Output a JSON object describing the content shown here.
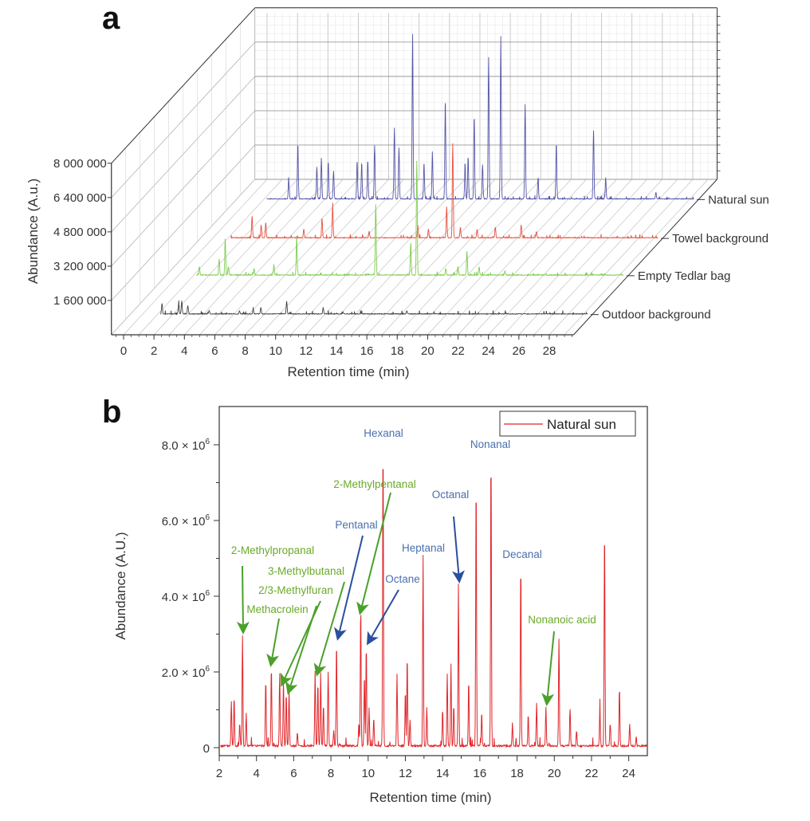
{
  "panel_a_letter": "a",
  "panel_b_letter": "b",
  "colors": {
    "natural_sun_a": "#5555a8",
    "towel": "#e8503f",
    "tedlar": "#7ccc4c",
    "outdoor": "#444444",
    "natural_sun_b": "#e0262a",
    "label_blue": "#4a6fae",
    "label_green": "#6aaa2a",
    "arrow_blue": "#2a4f9e",
    "arrow_green": "#4aa02a"
  },
  "chart_data": [
    {
      "type": "line",
      "projection": "3d-waterfall",
      "xlabel": "Retention time (min)",
      "ylabel": "Abundance (A.u.)",
      "xlim": [
        0,
        29.5
      ],
      "xticks": [
        "0",
        "2",
        "4",
        "6",
        "8",
        "10",
        "12",
        "14",
        "16",
        "18",
        "20",
        "22",
        "24",
        "26",
        "28"
      ],
      "yticks": [
        {
          "value": 1600000,
          "label": "1 600 000"
        },
        {
          "value": 3200000,
          "label": "3 200 000"
        },
        {
          "value": 4800000,
          "label": "4 800 000"
        },
        {
          "value": 6400000,
          "label": "6 400 000"
        },
        {
          "value": 8000000,
          "label": "8 000 000"
        }
      ],
      "grid": true,
      "series": [
        {
          "name": "Outdoor background",
          "color": "#444444",
          "peaks": [
            [
              1.3,
              0.5
            ],
            [
              2.4,
              0.5
            ],
            [
              2.6,
              0.6
            ],
            [
              3.0,
              0.4
            ],
            [
              4.4,
              0.15
            ],
            [
              6.4,
              0.15
            ],
            [
              7.3,
              0.2
            ],
            [
              7.8,
              0.3
            ],
            [
              9.5,
              0.6
            ],
            [
              11.9,
              0.3
            ],
            [
              13.2,
              0.1
            ],
            [
              17.4,
              0.15
            ]
          ]
        },
        {
          "name": "Empty Tedlar bag",
          "color": "#7ccc4c",
          "peaks": [
            [
              1.4,
              0.4
            ],
            [
              2.7,
              0.75
            ],
            [
              3.1,
              1.7
            ],
            [
              3.3,
              0.4
            ],
            [
              5.0,
              0.3
            ],
            [
              6.3,
              0.5
            ],
            [
              7.8,
              1.8
            ],
            [
              13.0,
              3.3
            ],
            [
              15.3,
              1.5
            ],
            [
              15.7,
              5.2
            ],
            [
              17.6,
              0.3
            ],
            [
              18.4,
              0.4
            ],
            [
              19.0,
              1.1
            ],
            [
              19.8,
              0.4
            ],
            [
              21.5,
              0.2
            ]
          ]
        },
        {
          "name": "Towel background",
          "color": "#e8503f",
          "peaks": [
            [
              2.6,
              1.0
            ],
            [
              3.2,
              0.6
            ],
            [
              3.5,
              0.7
            ],
            [
              6.0,
              0.4
            ],
            [
              7.2,
              0.9
            ],
            [
              7.9,
              1.5
            ],
            [
              10.3,
              0.3
            ],
            [
              13.5,
              0.6
            ],
            [
              14.2,
              0.4
            ],
            [
              15.4,
              1.3
            ],
            [
              15.8,
              4.4
            ],
            [
              16.3,
              0.5
            ],
            [
              17.4,
              0.4
            ],
            [
              18.6,
              0.5
            ],
            [
              20.3,
              0.6
            ],
            [
              21.3,
              0.3
            ]
          ]
        },
        {
          "name": "Natural sun",
          "color": "#5555a8",
          "peaks": [
            [
              2.65,
              0.9
            ],
            [
              3.25,
              2.6
            ],
            [
              4.5,
              1.5
            ],
            [
              4.8,
              1.9
            ],
            [
              5.25,
              1.7
            ],
            [
              5.6,
              1.3
            ],
            [
              7.15,
              1.8
            ],
            [
              7.45,
              1.7
            ],
            [
              7.85,
              1.8
            ],
            [
              8.3,
              2.5
            ],
            [
              9.6,
              3.3
            ],
            [
              9.9,
              2.4
            ],
            [
              10.8,
              7.7
            ],
            [
              11.55,
              1.7
            ],
            [
              12.1,
              2.2
            ],
            [
              12.95,
              4.6
            ],
            [
              14.25,
              1.7
            ],
            [
              14.45,
              2.0
            ],
            [
              14.85,
              3.9
            ],
            [
              15.4,
              1.6
            ],
            [
              15.8,
              6.6
            ],
            [
              16.6,
              7.6
            ],
            [
              18.2,
              4.4
            ],
            [
              19.05,
              1.0
            ],
            [
              20.25,
              2.6
            ],
            [
              22.7,
              3.2
            ],
            [
              23.5,
              1.0
            ],
            [
              26.8,
              0.3
            ]
          ]
        }
      ]
    },
    {
      "type": "line",
      "xlabel": "Retention time (min)",
      "ylabel": "Abundance (A.U.)",
      "xlim": [
        2,
        25
      ],
      "ylim": [
        -200000,
        9000000
      ],
      "xticks": [
        "2",
        "4",
        "6",
        "8",
        "10",
        "12",
        "14",
        "16",
        "18",
        "20",
        "22",
        "24"
      ],
      "yticks": [
        {
          "value": 0,
          "label": "0"
        },
        {
          "value": 2000000,
          "label": "2.0 × 10^6"
        },
        {
          "value": 4000000,
          "label": "4.0 × 10^6"
        },
        {
          "value": 6000000,
          "label": "6.0 × 10^6"
        },
        {
          "value": 8000000,
          "label": "8.0 × 10^6"
        }
      ],
      "legend": {
        "position": "top-right",
        "entries": [
          "Natural sun"
        ]
      },
      "series": [
        {
          "name": "Natural sun",
          "color": "#e0262a",
          "peaks": [
            [
              2.65,
              1.2
            ],
            [
              2.8,
              1.3
            ],
            [
              3.1,
              0.6
            ],
            [
              3.25,
              2.9
            ],
            [
              3.45,
              0.85
            ],
            [
              4.5,
              1.75
            ],
            [
              4.8,
              2.1
            ],
            [
              5.25,
              1.9
            ],
            [
              5.45,
              1.75
            ],
            [
              5.6,
              1.4
            ],
            [
              5.75,
              1.45
            ],
            [
              6.2,
              0.35
            ],
            [
              7.15,
              2.0
            ],
            [
              7.3,
              1.7
            ],
            [
              7.45,
              1.95
            ],
            [
              7.6,
              1.1
            ],
            [
              7.85,
              1.95
            ],
            [
              8.15,
              0.4
            ],
            [
              8.3,
              2.75
            ],
            [
              9.5,
              0.6
            ],
            [
              9.6,
              3.6
            ],
            [
              9.8,
              1.9
            ],
            [
              9.9,
              2.7
            ],
            [
              10.05,
              1.0
            ],
            [
              10.3,
              0.75
            ],
            [
              10.8,
              8.1
            ],
            [
              11.55,
              1.9
            ],
            [
              12.0,
              1.45
            ],
            [
              12.1,
              2.4
            ],
            [
              12.25,
              0.7
            ],
            [
              12.95,
              5.05
            ],
            [
              13.15,
              1.0
            ],
            [
              14.0,
              1.0
            ],
            [
              14.25,
              1.9
            ],
            [
              14.45,
              2.15
            ],
            [
              14.6,
              1.1
            ],
            [
              14.85,
              4.3
            ],
            [
              15.4,
              1.75
            ],
            [
              15.8,
              7.1
            ],
            [
              16.1,
              0.9
            ],
            [
              16.6,
              7.85
            ],
            [
              17.75,
              0.6
            ],
            [
              18.2,
              4.9
            ],
            [
              18.6,
              0.85
            ],
            [
              19.05,
              1.15
            ],
            [
              19.55,
              1.05
            ],
            [
              20.25,
              2.85
            ],
            [
              20.85,
              0.95
            ],
            [
              21.2,
              0.4
            ],
            [
              22.45,
              1.0
            ],
            [
              22.7,
              5.85
            ],
            [
              23.0,
              0.6
            ],
            [
              23.5,
              1.55
            ],
            [
              24.05,
              0.6
            ],
            [
              24.4,
              0.25
            ]
          ]
        }
      ],
      "annotations": [
        {
          "text": "Hexanal",
          "color": "blue",
          "peak_time": 10.8
        },
        {
          "text": "Nonanal",
          "color": "blue",
          "peak_time": 16.6
        },
        {
          "text": "2-Methylpentanal",
          "color": "green",
          "peak_time": 9.6
        },
        {
          "text": "Pentanal",
          "color": "blue",
          "peak_time": 8.3
        },
        {
          "text": "Octanal",
          "color": "blue",
          "peak_time": 14.85
        },
        {
          "text": "Heptanal",
          "color": "blue",
          "peak_time": 12.95
        },
        {
          "text": "Octane",
          "color": "blue",
          "peak_time": 9.9
        },
        {
          "text": "Decanal",
          "color": "blue",
          "peak_time": 18.2
        },
        {
          "text": "2-Methylpropanal",
          "color": "green",
          "peak_time": 3.25
        },
        {
          "text": "3-Methylbutanal",
          "color": "green",
          "peak_time": 7.15
        },
        {
          "text": "2/3-Methylfuran",
          "color": "green",
          "peak_time": 5.6
        },
        {
          "text": "Methacrolein",
          "color": "green",
          "peak_time": 4.8
        },
        {
          "text": "Nonanoic acid",
          "color": "green",
          "peak_time": 19.55
        }
      ]
    }
  ]
}
